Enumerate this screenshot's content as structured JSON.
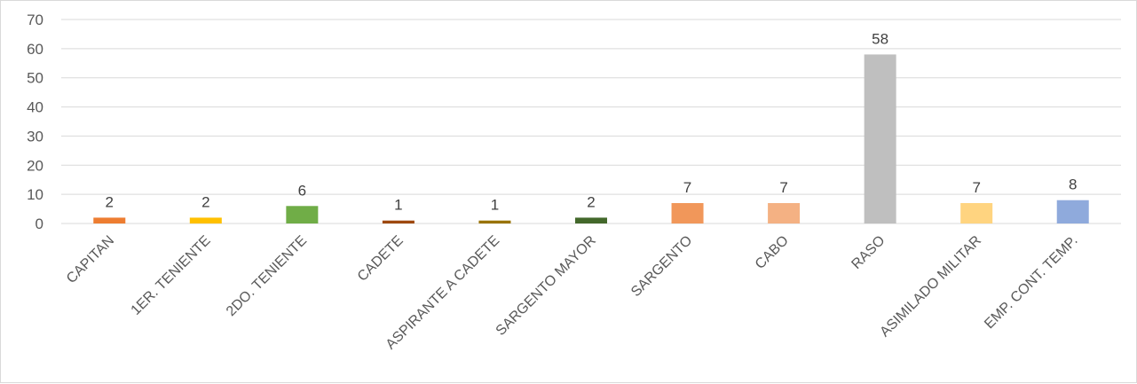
{
  "chart_data": {
    "type": "bar",
    "title": "",
    "xlabel": "",
    "ylabel": "",
    "ylim": [
      0,
      70
    ],
    "yticks": [
      0,
      10,
      20,
      30,
      40,
      50,
      60,
      70
    ],
    "grid": true,
    "legend": "none",
    "categories": [
      "CAPITAN",
      "1ER. TENIENTE",
      "2DO. TENIENTE",
      "CADETE",
      "ASPIRANTE A CADETE",
      "SARGENTO MAYOR",
      "SARGENTO",
      "CABO",
      "RASO",
      "ASIMILADO MILITAR",
      "EMP. CONT. TEMP."
    ],
    "values": [
      2,
      2,
      6,
      1,
      1,
      2,
      7,
      7,
      58,
      7,
      8
    ],
    "colors": [
      "#ed7d31",
      "#ffc000",
      "#70ad47",
      "#9e480e",
      "#997300",
      "#43682b",
      "#f1975a",
      "#f4b183",
      "#bfbfbf",
      "#ffd480",
      "#8faadc"
    ]
  }
}
